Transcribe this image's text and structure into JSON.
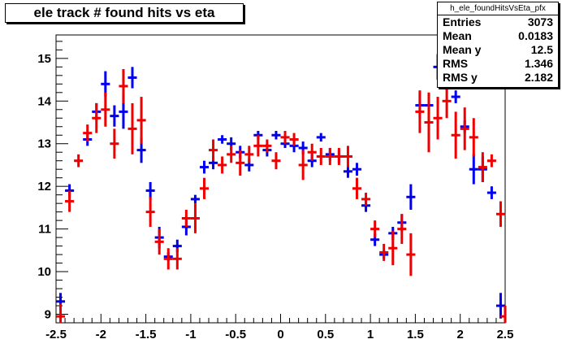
{
  "title": "ele track # found hits vs eta",
  "stats": {
    "name": "h_ele_foundHitsVsEta_pfx",
    "rows": [
      {
        "label": "Entries",
        "value": "3073"
      },
      {
        "label": "Mean",
        "value": "0.0183"
      },
      {
        "label": "Mean y",
        "value": "12.5"
      },
      {
        "label": "RMS",
        "value": "1.346"
      },
      {
        "label": "RMS y",
        "value": "2.182"
      }
    ]
  },
  "chart_data": {
    "type": "scatter",
    "title": "ele track # found hits vs eta",
    "xlabel": "",
    "ylabel": "",
    "xlim": [
      -2.5,
      2.5
    ],
    "ylim": [
      8.8,
      15.55
    ],
    "x_ticks": [
      -2.5,
      -2,
      -1.5,
      -1,
      -0.5,
      0,
      0.5,
      1,
      1.5,
      2,
      2.5
    ],
    "x_tick_labels": [
      "-2.5",
      "-2",
      "-1.5",
      "-1",
      "-0.5",
      "0",
      "0.5",
      "1",
      "1.5",
      "2",
      "2.5"
    ],
    "y_ticks": [
      9,
      10,
      11,
      12,
      13,
      14,
      15
    ],
    "y_tick_labels": [
      "9",
      "10",
      "11",
      "12",
      "13",
      "14",
      "15"
    ],
    "grid": false,
    "series": [
      {
        "color": "#0000ee",
        "points": [
          [
            -2.45,
            9.3,
            0.2
          ],
          [
            -2.35,
            11.9,
            0.15
          ],
          [
            -2.15,
            13.1,
            0.15
          ],
          [
            -2.05,
            13.75,
            0.2
          ],
          [
            -1.95,
            14.4,
            0.3
          ],
          [
            -1.85,
            13.65,
            0.25
          ],
          [
            -1.75,
            13.75,
            0.4
          ],
          [
            -1.65,
            14.55,
            0.25
          ],
          [
            -1.55,
            12.85,
            0.3
          ],
          [
            -1.45,
            11.9,
            0.2
          ],
          [
            -1.35,
            10.8,
            0.25
          ],
          [
            -1.25,
            10.35,
            0.1
          ],
          [
            -1.15,
            10.6,
            0.15
          ],
          [
            -1.05,
            11.05,
            0.2
          ],
          [
            -0.95,
            11.7,
            0.1
          ],
          [
            -0.85,
            12.45,
            0.15
          ],
          [
            -0.75,
            12.55,
            0.15
          ],
          [
            -0.65,
            13.1,
            0.1
          ],
          [
            -0.55,
            13.0,
            0.15
          ],
          [
            -0.45,
            12.8,
            0.15
          ],
          [
            -0.35,
            12.5,
            0.15
          ],
          [
            -0.25,
            13.2,
            0.1
          ],
          [
            -0.15,
            12.85,
            0.15
          ],
          [
            -0.05,
            13.2,
            0.1
          ],
          [
            0.05,
            13.0,
            0.1
          ],
          [
            0.15,
            12.95,
            0.15
          ],
          [
            0.25,
            12.9,
            0.15
          ],
          [
            0.35,
            12.6,
            0.15
          ],
          [
            0.45,
            13.15,
            0.1
          ],
          [
            0.55,
            12.75,
            0.15
          ],
          [
            0.65,
            12.7,
            0.15
          ],
          [
            0.75,
            12.35,
            0.15
          ],
          [
            0.85,
            12.4,
            0.15
          ],
          [
            0.95,
            11.55,
            0.15
          ],
          [
            1.05,
            10.75,
            0.15
          ],
          [
            1.15,
            10.4,
            0.1
          ],
          [
            1.25,
            10.9,
            0.15
          ],
          [
            1.35,
            11.15,
            0.2
          ],
          [
            1.45,
            11.75,
            0.3
          ],
          [
            1.55,
            13.9,
            0.3
          ],
          [
            1.65,
            13.9,
            0.25
          ],
          [
            1.75,
            14.8,
            0.3
          ],
          [
            1.85,
            14.55,
            0.3
          ],
          [
            1.95,
            14.1,
            0.15
          ],
          [
            2.05,
            13.4,
            0.15
          ],
          [
            2.15,
            12.4,
            0.35
          ],
          [
            2.25,
            12.4,
            0.3
          ],
          [
            2.35,
            11.85,
            0.15
          ],
          [
            2.45,
            9.2,
            0.3
          ]
        ]
      },
      {
        "color": "#ee0000",
        "points": [
          [
            -2.45,
            8.95,
            0.3
          ],
          [
            -2.35,
            11.65,
            0.25
          ],
          [
            -2.25,
            12.6,
            0.15
          ],
          [
            -2.15,
            13.25,
            0.2
          ],
          [
            -2.05,
            13.6,
            0.35
          ],
          [
            -1.95,
            13.8,
            0.4
          ],
          [
            -1.85,
            13.0,
            0.35
          ],
          [
            -1.75,
            14.35,
            0.4
          ],
          [
            -1.65,
            13.35,
            0.6
          ],
          [
            -1.55,
            13.55,
            0.55
          ],
          [
            -1.45,
            11.4,
            0.35
          ],
          [
            -1.35,
            10.7,
            0.3
          ],
          [
            -1.25,
            10.3,
            0.25
          ],
          [
            -1.15,
            10.3,
            0.25
          ],
          [
            -1.05,
            11.25,
            0.2
          ],
          [
            -0.95,
            11.25,
            0.35
          ],
          [
            -0.85,
            11.95,
            0.25
          ],
          [
            -0.75,
            12.85,
            0.25
          ],
          [
            -0.65,
            12.5,
            0.2
          ],
          [
            -0.55,
            12.75,
            0.2
          ],
          [
            -0.45,
            12.55,
            0.3
          ],
          [
            -0.35,
            12.75,
            0.2
          ],
          [
            -0.25,
            12.95,
            0.25
          ],
          [
            -0.15,
            12.95,
            0.15
          ],
          [
            -0.05,
            12.6,
            0.2
          ],
          [
            0.05,
            13.15,
            0.15
          ],
          [
            0.15,
            13.1,
            0.15
          ],
          [
            0.25,
            12.5,
            0.35
          ],
          [
            0.35,
            12.8,
            0.2
          ],
          [
            0.45,
            12.7,
            0.2
          ],
          [
            0.55,
            12.7,
            0.2
          ],
          [
            0.65,
            12.7,
            0.2
          ],
          [
            0.75,
            12.7,
            0.25
          ],
          [
            0.85,
            11.95,
            0.25
          ],
          [
            0.95,
            11.7,
            0.15
          ],
          [
            1.05,
            11.0,
            0.2
          ],
          [
            1.15,
            10.45,
            0.2
          ],
          [
            1.25,
            10.55,
            0.4
          ],
          [
            1.35,
            11.0,
            0.35
          ],
          [
            1.45,
            10.4,
            0.5
          ],
          [
            1.55,
            13.75,
            0.5
          ],
          [
            1.65,
            13.5,
            0.7
          ],
          [
            1.75,
            13.6,
            0.5
          ],
          [
            1.85,
            14.0,
            0.4
          ],
          [
            1.95,
            13.2,
            0.55
          ],
          [
            2.05,
            13.35,
            0.5
          ],
          [
            2.15,
            13.15,
            0.45
          ],
          [
            2.25,
            12.45,
            0.35
          ],
          [
            2.35,
            12.6,
            0.15
          ],
          [
            2.45,
            11.35,
            0.3
          ],
          [
            2.5,
            8.95,
            0.25
          ]
        ]
      }
    ]
  }
}
